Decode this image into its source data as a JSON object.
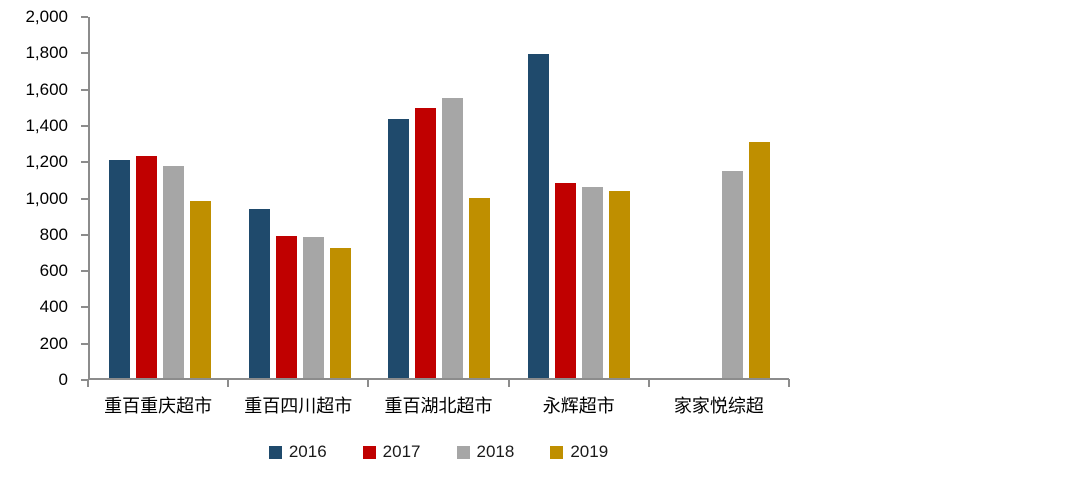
{
  "chart_data": {
    "type": "bar",
    "categories": [
      "重百重庆超市",
      "重百四川超市",
      "重百湖北超市",
      "永辉超市",
      "家家悦综超"
    ],
    "series": [
      {
        "name": "2016",
        "color": "#1F4A6C",
        "values": [
          1200,
          930,
          1425,
          1785,
          0
        ]
      },
      {
        "name": "2017",
        "color": "#C00000",
        "values": [
          1225,
          785,
          1490,
          1075,
          0
        ]
      },
      {
        "name": "2018",
        "color": "#A6A6A6",
        "values": [
          1170,
          775,
          1545,
          1055,
          1140
        ]
      },
      {
        "name": "2019",
        "color": "#BF8F00",
        "values": [
          975,
          715,
          990,
          1030,
          1300
        ]
      }
    ],
    "title": "",
    "xlabel": "",
    "ylabel": "",
    "ylim": [
      0,
      2000
    ],
    "ytick_step": 200,
    "ytick_labels": [
      "0",
      "200",
      "400",
      "600",
      "800",
      "1,000",
      "1,200",
      "1,400",
      "1,600",
      "1,800",
      "2,000"
    ],
    "grid": false,
    "legend_position": "bottom",
    "legend_labels": [
      "2016",
      "2017",
      "2018",
      "2019"
    ],
    "axis_color": "#8c8c8c",
    "label_color": "#000000"
  }
}
